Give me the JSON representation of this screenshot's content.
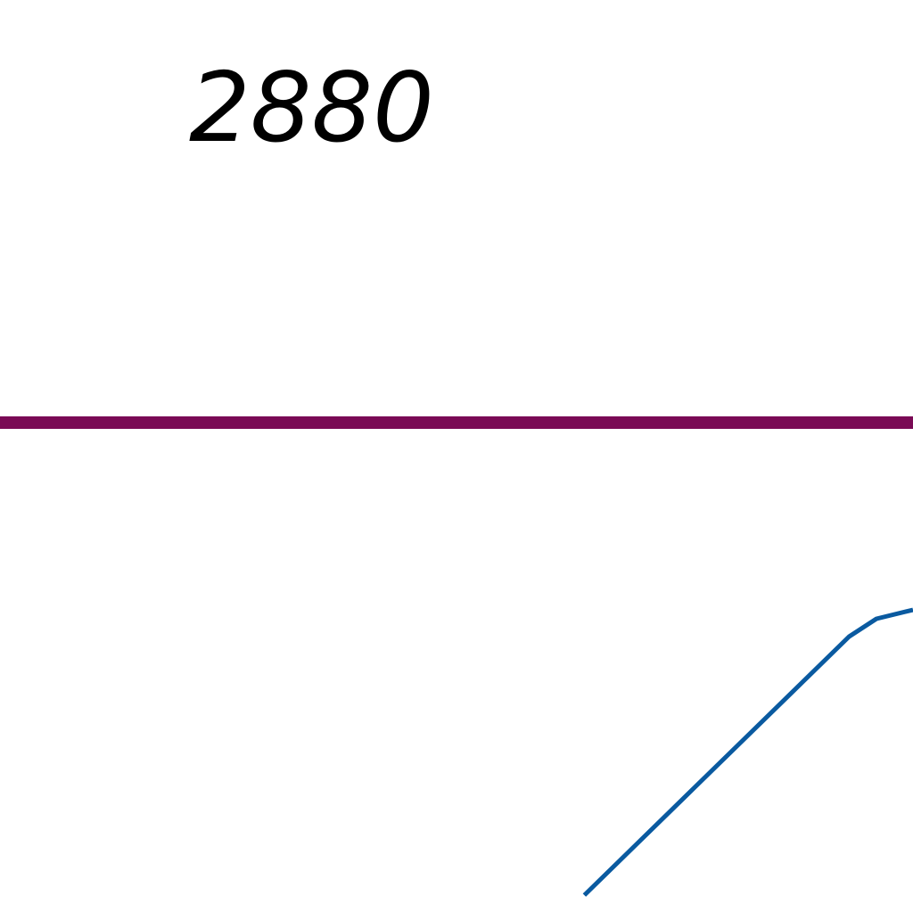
{
  "chart_data": {
    "type": "line",
    "visible_labels": [
      "2880"
    ],
    "series": [
      {
        "color": "#7a0a55",
        "style": "horizontal reference line",
        "points": [
          [
            0,
            0
          ],
          [
            1,
            0
          ]
        ]
      },
      {
        "color": "#0a5aa0",
        "style": "rising curve that levels off",
        "points": [
          [
            0.64,
            -0.53
          ],
          [
            0.7,
            -0.47
          ],
          [
            0.76,
            -0.41
          ],
          [
            0.82,
            -0.35
          ],
          [
            0.88,
            -0.29
          ],
          [
            0.93,
            -0.24
          ],
          [
            0.96,
            -0.22
          ],
          [
            1.0,
            -0.21
          ]
        ]
      }
    ],
    "grid": false,
    "legend": "none"
  }
}
